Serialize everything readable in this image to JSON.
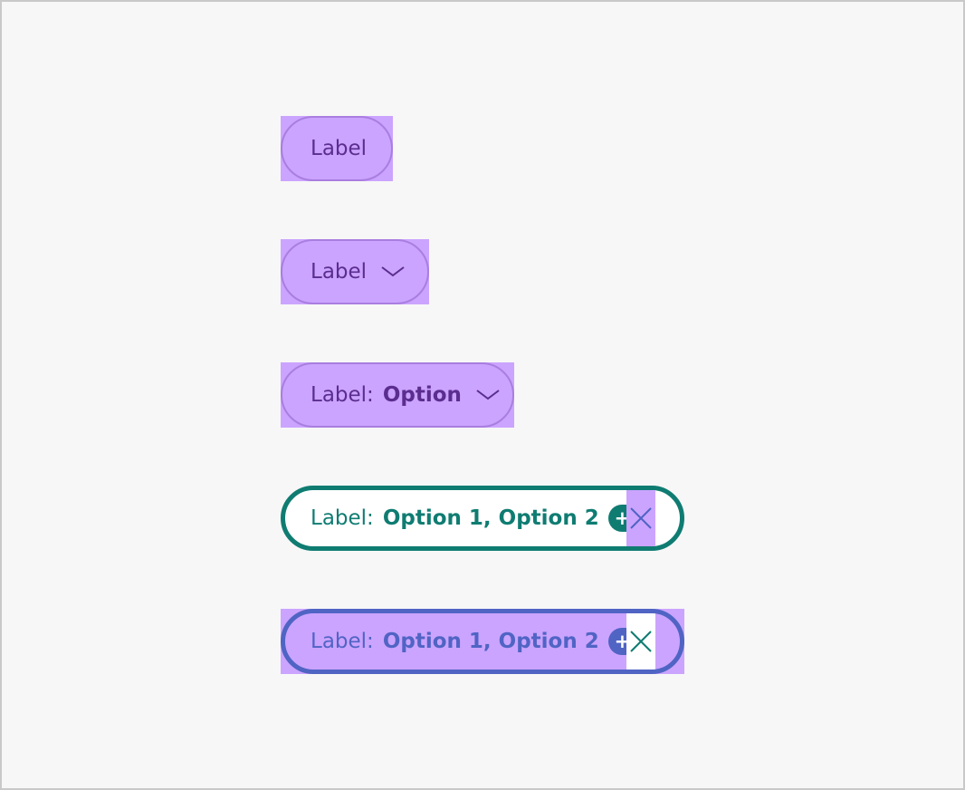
{
  "chips": {
    "basic": {
      "label": "Label"
    },
    "dropdown": {
      "label": "Label"
    },
    "selected_single": {
      "label": "Label:",
      "option": "Option"
    },
    "selected_multi_default": {
      "label": "Label:",
      "options": "Option 1, Option 2",
      "more_count": "+2"
    },
    "selected_multi_focus": {
      "label": "Label:",
      "options": "Option 1, Option 2",
      "more_count": "+2"
    }
  },
  "icons": {
    "dropdown": "chevron-down-icon",
    "clear": "close-icon"
  },
  "colors": {
    "spacing_overlay": "#cba4ff",
    "plain_text": "#5a2d8e",
    "selected_teal": "#0f7c72",
    "focus_blue": "#5064c4",
    "background": "#f7f7f7"
  }
}
